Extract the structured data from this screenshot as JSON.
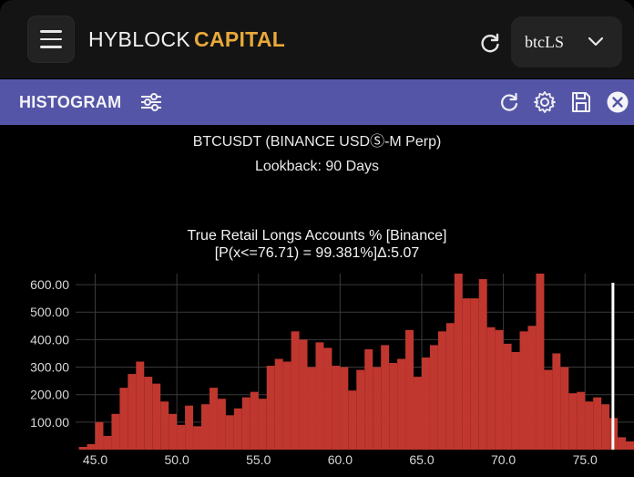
{
  "app": {
    "logo_part1": "HYBLOCK",
    "logo_part2": "CAPITAL",
    "selected_account": "btcLS"
  },
  "panel": {
    "title": "HISTOGRAM"
  },
  "chart_info": {
    "pair": "BTCUSDT (BINANCE USDⓈ-M Perp)",
    "lookback": "Lookback: 90 Days",
    "title_line1": "True Retail Longs Accounts % [Binance]",
    "title_line2": "[P(x<=76.71) = 99.381%]Δ:5.07"
  },
  "colors": {
    "brand_accent": "#e8a93a",
    "panel_header": "#5555a7",
    "bars": "#c0372f",
    "marker": "#ffffff"
  },
  "chart_data": {
    "type": "bar",
    "bin_width": 0.5,
    "x": [
      44.0,
      44.5,
      45.0,
      45.5,
      46.0,
      46.5,
      47.0,
      47.5,
      48.0,
      48.5,
      49.0,
      49.5,
      50.0,
      50.5,
      51.0,
      51.5,
      52.0,
      52.5,
      53.0,
      53.5,
      54.0,
      54.5,
      55.0,
      55.5,
      56.0,
      56.5,
      57.0,
      57.5,
      58.0,
      58.5,
      59.0,
      59.5,
      60.0,
      60.5,
      61.0,
      61.5,
      62.0,
      62.5,
      63.0,
      63.5,
      64.0,
      64.5,
      65.0,
      65.5,
      66.0,
      66.5,
      67.0,
      67.5,
      68.0,
      68.5,
      69.0,
      69.5,
      70.0,
      70.5,
      71.0,
      71.5,
      72.0,
      72.5,
      73.0,
      73.5,
      74.0,
      74.5,
      75.0,
      75.5,
      76.0,
      76.5,
      77.0,
      77.5
    ],
    "values": [
      10,
      20,
      100,
      50,
      130,
      225,
      275,
      320,
      265,
      240,
      175,
      130,
      90,
      160,
      85,
      165,
      225,
      185,
      125,
      150,
      190,
      210,
      185,
      305,
      330,
      320,
      430,
      400,
      300,
      390,
      370,
      305,
      300,
      215,
      290,
      365,
      300,
      380,
      315,
      330,
      435,
      265,
      335,
      380,
      430,
      460,
      665,
      550,
      550,
      620,
      445,
      435,
      385,
      355,
      430,
      450,
      640,
      290,
      350,
      300,
      205,
      210,
      175,
      190,
      165,
      115,
      45,
      30
    ],
    "xlabel": "",
    "ylabel": "",
    "xlim": [
      43.8,
      78.0
    ],
    "ylim": [
      0,
      640
    ],
    "x_ticks": [
      "45.0",
      "50.0",
      "55.0",
      "60.0",
      "65.0",
      "70.0",
      "75.0"
    ],
    "y_ticks": [
      "100.00",
      "200.00",
      "300.00",
      "400.00",
      "500.00",
      "600.00"
    ],
    "marker_line_x": 76.71,
    "grid": true
  }
}
